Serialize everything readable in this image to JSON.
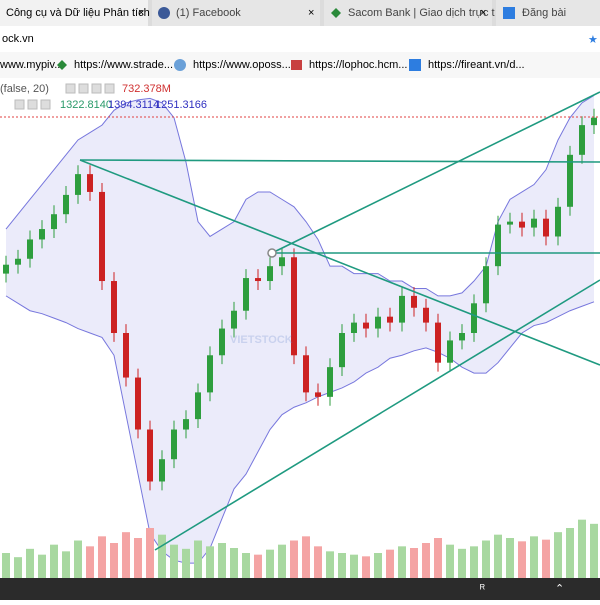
{
  "tabs": [
    "Công cụ và Dữ liệu Phân tích",
    "(1) Facebook",
    "Sacom Bank | Giao dịch trực t",
    "Đăng bài"
  ],
  "address": "ock.vn",
  "bookmarks": [
    "www.mypiv...",
    "https://www.strade...",
    "https://www.oposs...",
    "https://lophoc.hcm...",
    "https://fireant.vn/d..."
  ],
  "indicators": {
    "volume_params": "(false, 20)",
    "volume": "732.378M",
    "bb_middle": "1322.8140",
    "bb_upper": "1394.3114",
    "bb_lower": "1251.3166"
  },
  "watermark": "VIETSTOCK",
  "chart": {
    "type": "candlestick",
    "ylim": [
      1090,
      1420
    ],
    "vlim": [
      0,
      120
    ],
    "candles": [
      [
        1295,
        1307,
        1289,
        1301
      ],
      [
        1301,
        1311,
        1295,
        1305
      ],
      [
        1305,
        1324,
        1299,
        1318
      ],
      [
        1318,
        1331,
        1312,
        1325
      ],
      [
        1325,
        1341,
        1319,
        1335
      ],
      [
        1335,
        1354,
        1329,
        1348
      ],
      [
        1348,
        1368,
        1342,
        1362
      ],
      [
        1362,
        1368,
        1344,
        1350
      ],
      [
        1350,
        1356,
        1284,
        1290
      ],
      [
        1290,
        1296,
        1249,
        1255
      ],
      [
        1255,
        1261,
        1219,
        1225
      ],
      [
        1225,
        1231,
        1184,
        1190
      ],
      [
        1190,
        1196,
        1149,
        1155
      ],
      [
        1155,
        1176,
        1149,
        1170
      ],
      [
        1170,
        1196,
        1164,
        1190
      ],
      [
        1190,
        1203,
        1184,
        1197
      ],
      [
        1197,
        1221,
        1191,
        1215
      ],
      [
        1215,
        1246,
        1209,
        1240
      ],
      [
        1240,
        1264,
        1234,
        1258
      ],
      [
        1258,
        1276,
        1252,
        1270
      ],
      [
        1270,
        1298,
        1264,
        1292
      ],
      [
        1292,
        1298,
        1284,
        1290
      ],
      [
        1290,
        1306,
        1284,
        1300
      ],
      [
        1300,
        1312,
        1294,
        1306
      ],
      [
        1306,
        1312,
        1234,
        1240
      ],
      [
        1240,
        1246,
        1209,
        1215
      ],
      [
        1215,
        1221,
        1206,
        1212
      ],
      [
        1212,
        1238,
        1206,
        1232
      ],
      [
        1232,
        1261,
        1226,
        1255
      ],
      [
        1255,
        1268,
        1249,
        1262
      ],
      [
        1262,
        1268,
        1252,
        1258
      ],
      [
        1258,
        1272,
        1252,
        1266
      ],
      [
        1266,
        1272,
        1256,
        1262
      ],
      [
        1262,
        1286,
        1256,
        1280
      ],
      [
        1280,
        1286,
        1266,
        1272
      ],
      [
        1272,
        1278,
        1256,
        1262
      ],
      [
        1262,
        1268,
        1229,
        1235
      ],
      [
        1235,
        1256,
        1229,
        1250
      ],
      [
        1250,
        1261,
        1244,
        1255
      ],
      [
        1255,
        1281,
        1249,
        1275
      ],
      [
        1275,
        1306,
        1269,
        1300
      ],
      [
        1300,
        1334,
        1294,
        1328
      ],
      [
        1328,
        1336,
        1322,
        1330
      ],
      [
        1330,
        1336,
        1320,
        1326
      ],
      [
        1326,
        1338,
        1320,
        1332
      ],
      [
        1332,
        1338,
        1314,
        1320
      ],
      [
        1320,
        1346,
        1314,
        1340
      ],
      [
        1340,
        1381,
        1334,
        1375
      ],
      [
        1375,
        1401,
        1369,
        1395
      ],
      [
        1395,
        1406,
        1389,
        1400
      ]
    ],
    "volumes": [
      30,
      25,
      35,
      28,
      40,
      32,
      45,
      38,
      50,
      42,
      55,
      48,
      60,
      52,
      40,
      35,
      45,
      38,
      42,
      36,
      30,
      28,
      34,
      40,
      45,
      50,
      38,
      32,
      30,
      28,
      26,
      30,
      34,
      38,
      36,
      42,
      48,
      40,
      35,
      38,
      45,
      52,
      48,
      44,
      50,
      46,
      55,
      60,
      70,
      65
    ],
    "bb_upper": [
      1325,
      1335,
      1345,
      1355,
      1365,
      1375,
      1385,
      1390,
      1395,
      1405,
      1410,
      1412,
      1413,
      1410,
      1400,
      1370,
      1330,
      1320,
      1325,
      1330,
      1345,
      1350,
      1350,
      1345,
      1340,
      1330,
      1318,
      1300,
      1300,
      1295,
      1295,
      1295,
      1290,
      1290,
      1285,
      1285,
      1280,
      1280,
      1282,
      1290,
      1300,
      1330,
      1345,
      1350,
      1355,
      1365,
      1385,
      1400,
      1410,
      1415
    ],
    "bb_lower": [
      1280,
      1275,
      1270,
      1268,
      1265,
      1262,
      1258,
      1255,
      1252,
      1240,
      1200,
      1160,
      1120,
      1108,
      1102,
      1100,
      1100,
      1110,
      1130,
      1150,
      1160,
      1175,
      1190,
      1200,
      1205,
      1208,
      1212,
      1215,
      1218,
      1222,
      1228,
      1232,
      1238,
      1240,
      1243,
      1245,
      1242,
      1238,
      1232,
      1228,
      1228,
      1235,
      1245,
      1255,
      1260,
      1262,
      1266,
      1270,
      1273,
      1276
    ],
    "up_color": "#2e9e3e",
    "down_color": "#cc2222",
    "up_volume_color": "#a8d8a0",
    "down_volume_color": "#f4a4a4",
    "band_color": "#7777dd"
  }
}
